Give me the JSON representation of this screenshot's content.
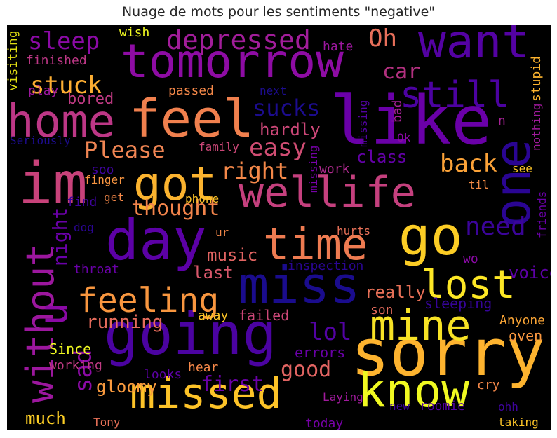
{
  "title": "Nuage de mots pour les sentiments \"negative\"",
  "chart_data": {
    "type": "wordcloud",
    "title": "Nuage de mots pour les sentiments \"negative\"",
    "colormap": "plasma",
    "background": "#000000",
    "words": [
      {
        "text": "sorry",
        "color": "#fdb32f"
      },
      {
        "text": "going",
        "color": "#4b03a1"
      },
      {
        "text": "miss",
        "color": "#1a0c8d"
      },
      {
        "text": "like",
        "color": "#6a00a8"
      },
      {
        "text": "day",
        "color": "#5c01a6"
      },
      {
        "text": "go",
        "color": "#fccd25"
      },
      {
        "text": "feel",
        "color": "#f0804e"
      },
      {
        "text": "tomorrow",
        "color": "#8e0ca4"
      },
      {
        "text": "want",
        "color": "#5402a3"
      },
      {
        "text": "know",
        "color": "#f0f921"
      },
      {
        "text": "missed",
        "color": "#fdc328"
      },
      {
        "text": "im",
        "color": "#c8427a"
      },
      {
        "text": "home",
        "color": "#bd3786"
      },
      {
        "text": "wellife",
        "color": "#c5407e"
      },
      {
        "text": "time",
        "color": "#ee7b51"
      },
      {
        "text": "without",
        "color": "#9c179e"
      },
      {
        "text": "one",
        "color": "#2a0593"
      },
      {
        "text": "got",
        "color": "#fbb32f"
      },
      {
        "text": "lost",
        "color": "#fde725"
      },
      {
        "text": "mine",
        "color": "#f7e225"
      },
      {
        "text": "feeling",
        "color": "#f8963f"
      },
      {
        "text": "still",
        "color": "#4c02a1"
      },
      {
        "text": "u",
        "color": "#8a09a5"
      },
      {
        "text": "depressed",
        "color": "#a21d9a"
      },
      {
        "text": "stuck",
        "color": "#fdae32"
      },
      {
        "text": "Oh",
        "color": "#e76f5a"
      },
      {
        "text": "sleep",
        "color": "#8b0aa5"
      },
      {
        "text": "car",
        "color": "#b2307f"
      },
      {
        "text": "need",
        "color": "#3b049a"
      },
      {
        "text": "easy",
        "color": "#d04d73"
      },
      {
        "text": "sucks",
        "color": "#1c0c8e"
      },
      {
        "text": "back",
        "color": "#fba238"
      },
      {
        "text": "Please",
        "color": "#f08553"
      },
      {
        "text": "right",
        "color": "#f48849"
      },
      {
        "text": "thought",
        "color": "#f2844b"
      },
      {
        "text": "lol",
        "color": "#5302a3"
      },
      {
        "text": "sad",
        "color": "#8b0aa5"
      },
      {
        "text": "night",
        "color": "#6a00a8"
      },
      {
        "text": "hardly",
        "color": "#cc4778"
      },
      {
        "text": "class",
        "color": "#6300a7"
      },
      {
        "text": "music",
        "color": "#e16462"
      },
      {
        "text": "last",
        "color": "#d8576b"
      },
      {
        "text": "really",
        "color": "#e97158"
      },
      {
        "text": "running",
        "color": "#e66c5c"
      },
      {
        "text": "good",
        "color": "#e16462"
      },
      {
        "text": "first",
        "color": "#6a00a8"
      },
      {
        "text": "gloomy",
        "color": "#f99a3e"
      },
      {
        "text": "much",
        "color": "#fcce25"
      },
      {
        "text": "voice",
        "color": "#5d01a6"
      },
      {
        "text": "bored",
        "color": "#c03a83"
      },
      {
        "text": "finished",
        "color": "#bd3786"
      },
      {
        "text": "wish",
        "color": "#f0f921"
      },
      {
        "text": "hate",
        "color": "#9c179e"
      },
      {
        "text": "visiting",
        "color": "#e0dd12"
      },
      {
        "text": "play",
        "color": "#9c179e"
      },
      {
        "text": "passed",
        "color": "#f48849"
      },
      {
        "text": "next",
        "color": "#1c0c8e"
      },
      {
        "text": "missing",
        "color": "#5302a3"
      },
      {
        "text": "bad",
        "color": "#a72197"
      },
      {
        "text": "nothing",
        "color": "#a01a9c"
      },
      {
        "text": "stupid",
        "color": "#fdb42f"
      },
      {
        "text": "Seriously",
        "color": "#1c0c8e"
      },
      {
        "text": "family",
        "color": "#cc4778"
      },
      {
        "text": "missing",
        "color": "#7701a8"
      },
      {
        "text": "Ok",
        "color": "#8a09a5"
      },
      {
        "text": "n",
        "color": "#a72197"
      },
      {
        "text": "soo",
        "color": "#3e049c"
      },
      {
        "text": "work",
        "color": "#b12a90"
      },
      {
        "text": "see",
        "color": "#fdc527"
      },
      {
        "text": "finger",
        "color": "#f89540"
      },
      {
        "text": "til",
        "color": "#f58c46"
      },
      {
        "text": "friends",
        "color": "#6a00a8"
      },
      {
        "text": "find",
        "color": "#3e049c"
      },
      {
        "text": "get",
        "color": "#f48849"
      },
      {
        "text": "phone",
        "color": "#fdc328"
      },
      {
        "text": "dog",
        "color": "#2a0593"
      },
      {
        "text": "ur",
        "color": "#f48849"
      },
      {
        "text": "hurts",
        "color": "#e97158"
      },
      {
        "text": "throat",
        "color": "#6a00a8"
      },
      {
        "text": "inspection",
        "color": "#2a0593"
      },
      {
        "text": "wo",
        "color": "#8a09a5"
      },
      {
        "text": "son",
        "color": "#e66c5c"
      },
      {
        "text": "sleeping",
        "color": "#350498"
      },
      {
        "text": "Anyone",
        "color": "#fca636"
      },
      {
        "text": "away",
        "color": "#fdc527"
      },
      {
        "text": "failed",
        "color": "#cc4778"
      },
      {
        "text": "oven",
        "color": "#f8963f"
      },
      {
        "text": "Since",
        "color": "#f0f921"
      },
      {
        "text": "working",
        "color": "#c03a83"
      },
      {
        "text": "errors",
        "color": "#6a00a8"
      },
      {
        "text": "looks",
        "color": "#5d01a6"
      },
      {
        "text": "hear",
        "color": "#f48849"
      },
      {
        "text": "cry",
        "color": "#f48849"
      },
      {
        "text": "Laying",
        "color": "#a01a9c"
      },
      {
        "text": "new",
        "color": "#3e049c"
      },
      {
        "text": "roomie",
        "color": "#5302a3"
      },
      {
        "text": "today",
        "color": "#7701a8"
      },
      {
        "text": "ohh",
        "color": "#3e049c"
      },
      {
        "text": "Tony",
        "color": "#e97158"
      },
      {
        "text": "taking",
        "color": "#fdc527"
      }
    ]
  }
}
